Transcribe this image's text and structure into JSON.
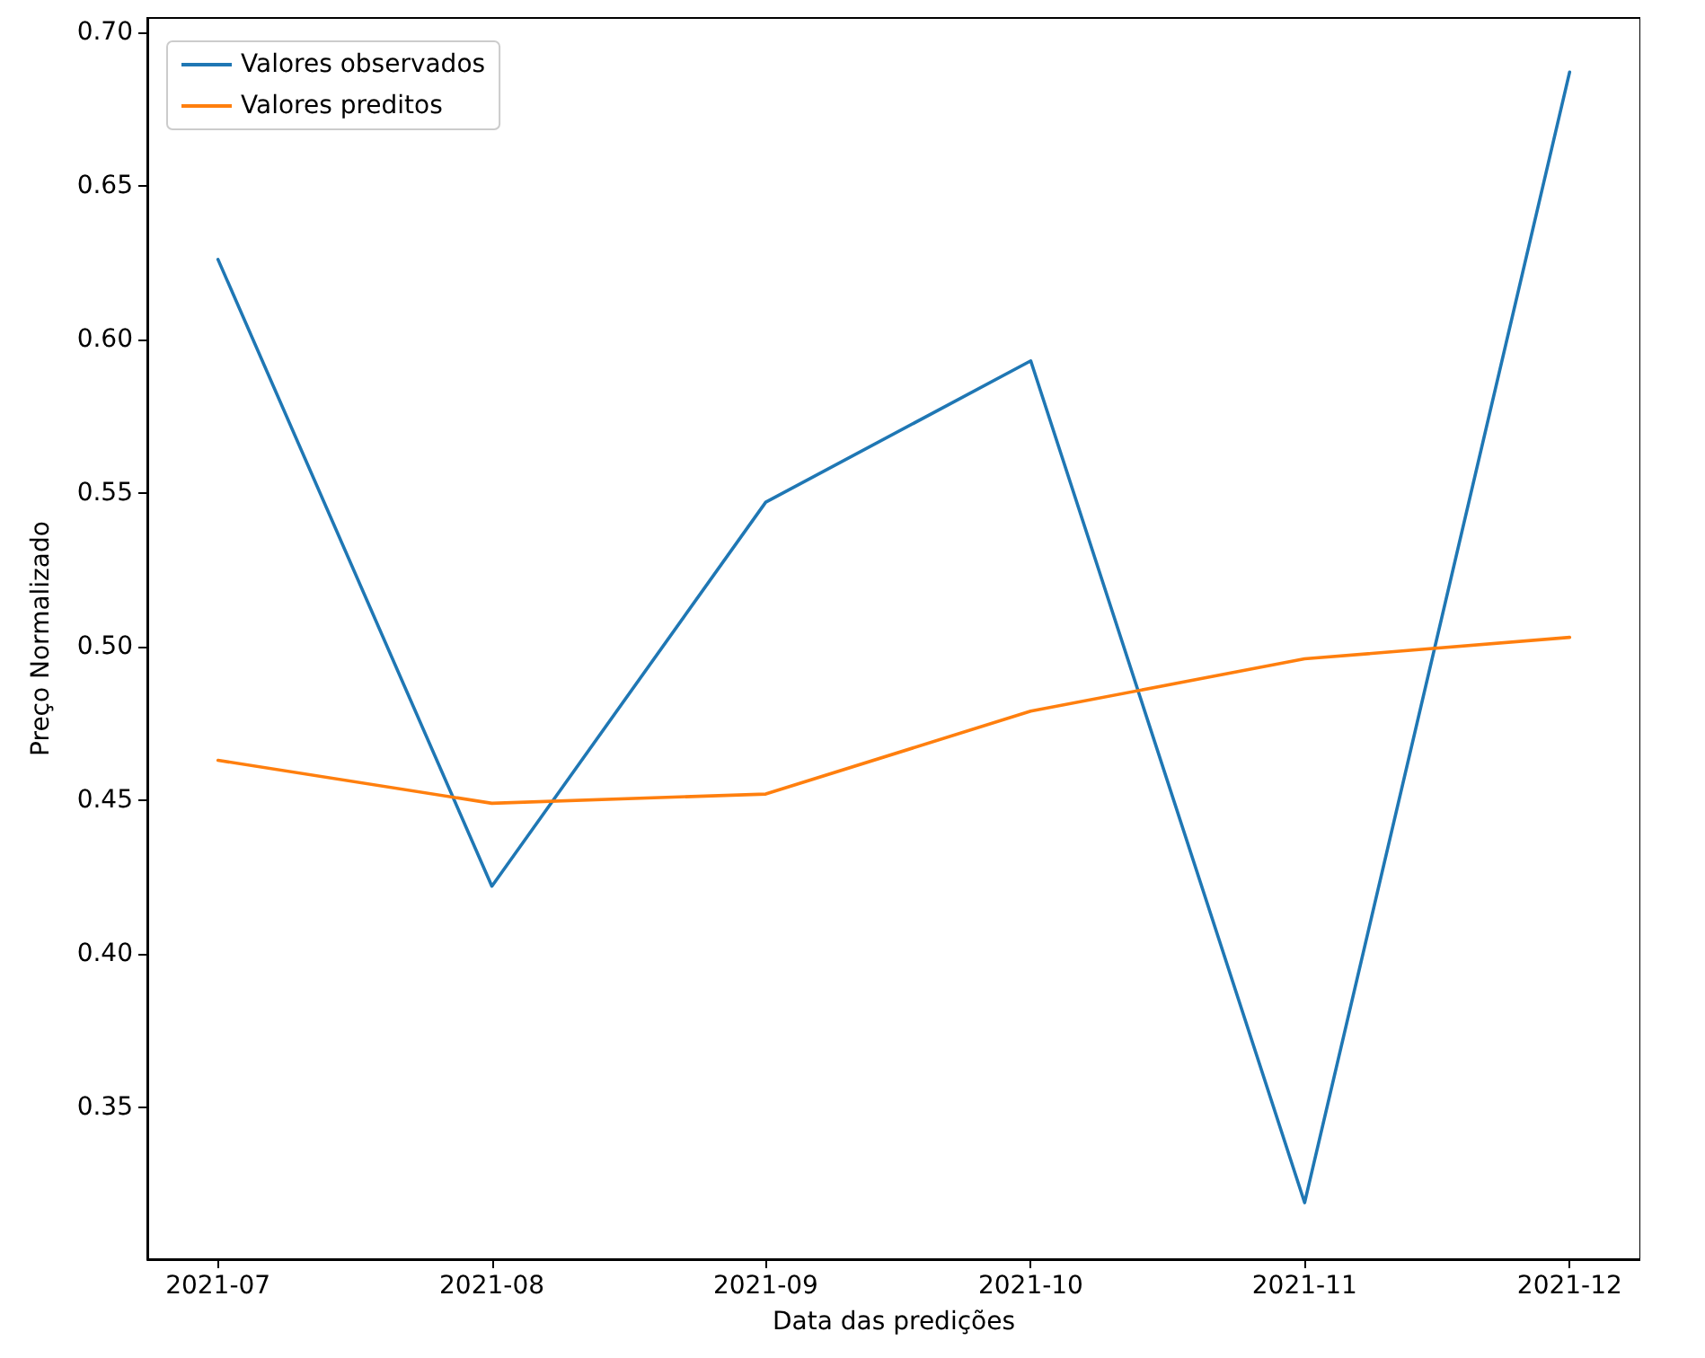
{
  "chart_data": {
    "type": "line",
    "xlabel": "Data das predições",
    "ylabel": "Preço Normalizado",
    "x": [
      "2021-07",
      "2021-08",
      "2021-09",
      "2021-10",
      "2021-11",
      "2021-12"
    ],
    "series": [
      {
        "name": "Valores observados",
        "color": "#1f77b4",
        "values": [
          0.626,
          0.422,
          0.547,
          0.593,
          0.319,
          0.687
        ]
      },
      {
        "name": "Valores preditos",
        "color": "#ff7f0e",
        "values": [
          0.463,
          0.449,
          0.452,
          0.479,
          0.496,
          0.503
        ]
      }
    ],
    "xlim": [
      "2021-06-23",
      "2021-12-09"
    ],
    "xticks": [
      "2021-07",
      "2021-08",
      "2021-09",
      "2021-10",
      "2021-11",
      "2021-12"
    ],
    "ylim": [
      0.3006,
      0.7046
    ],
    "yticks": [
      0.35,
      {
        "value": 0.4,
        "label": "0.40"
      },
      0.45,
      {
        "value": 0.5,
        "label": "0.50"
      },
      0.55,
      {
        "value": 0.6,
        "label": "0.60"
      },
      0.65,
      {
        "value": 0.7,
        "label": "0.70"
      }
    ],
    "grid": false,
    "legend": "top left",
    "marker": "none",
    "line_style": "solid"
  }
}
